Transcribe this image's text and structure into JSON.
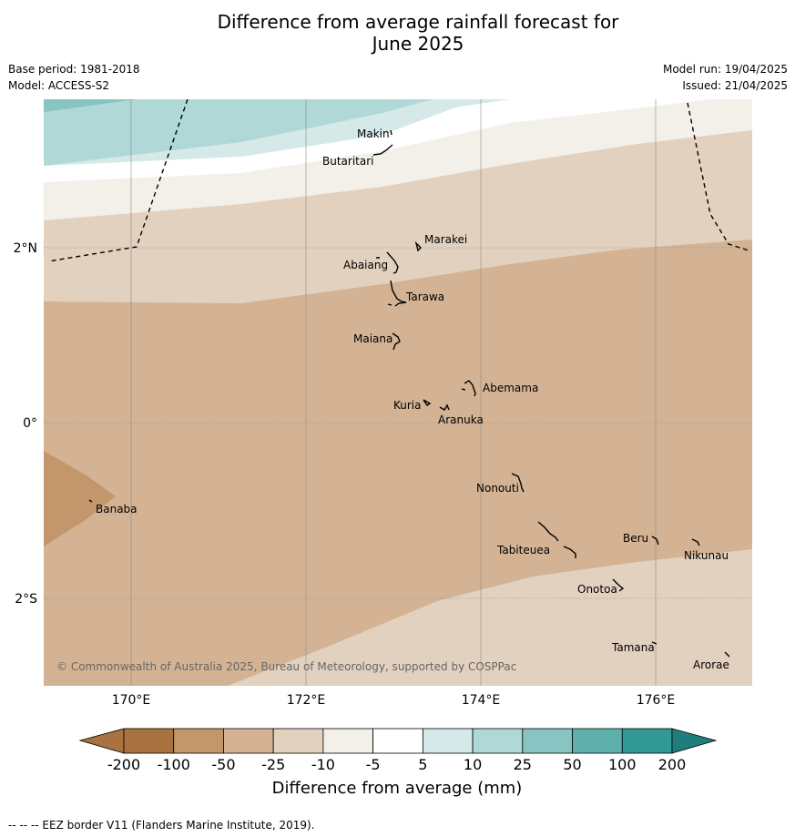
{
  "title_line1": "Difference from average rainfall forecast for",
  "title_line2": "June 2025",
  "base_period": "Base period: 1981-2018",
  "model": "Model: ACCESS-S2",
  "model_run": "Model run: 19/04/2025",
  "issued": "Issued: 21/04/2025",
  "copyright": "© Commonwealth of Australia 2025, Bureau of Meteorology, supported by COSPPac",
  "lat_labels": [
    "2°N",
    "0°",
    "2°S"
  ],
  "lon_labels": [
    "170°E",
    "172°E",
    "174°E",
    "176°E"
  ],
  "places": [
    {
      "name": "Makin"
    },
    {
      "name": "Butaritari"
    },
    {
      "name": "Marakei"
    },
    {
      "name": "Abaiang"
    },
    {
      "name": "Tarawa"
    },
    {
      "name": "Maiana"
    },
    {
      "name": "Abemama"
    },
    {
      "name": "Kuria"
    },
    {
      "name": "Aranuka"
    },
    {
      "name": "Banaba"
    },
    {
      "name": "Nonouti"
    },
    {
      "name": "Tabiteuea"
    },
    {
      "name": "Beru"
    },
    {
      "name": "Nikunau"
    },
    {
      "name": "Onotoa"
    },
    {
      "name": "Tamana"
    },
    {
      "name": "Arorae"
    }
  ],
  "colorbar": {
    "title": "Difference from average (mm)",
    "ticks": [
      "-200",
      "-100",
      "-50",
      "-25",
      "-10",
      "-5",
      "5",
      "10",
      "25",
      "50",
      "100",
      "200"
    ],
    "colors": [
      "#a97240",
      "#c3976b",
      "#d3b394",
      "#e3d1bf",
      "#f3efe9",
      "#ffffff",
      "#d5e9e8",
      "#b0d8d7",
      "#88c4c2",
      "#5fb0ad",
      "#329896",
      "#1f7e7c"
    ]
  },
  "footnote": "--  --  -- EEZ border V11 (Flanders Marine Institute, 2019)."
}
